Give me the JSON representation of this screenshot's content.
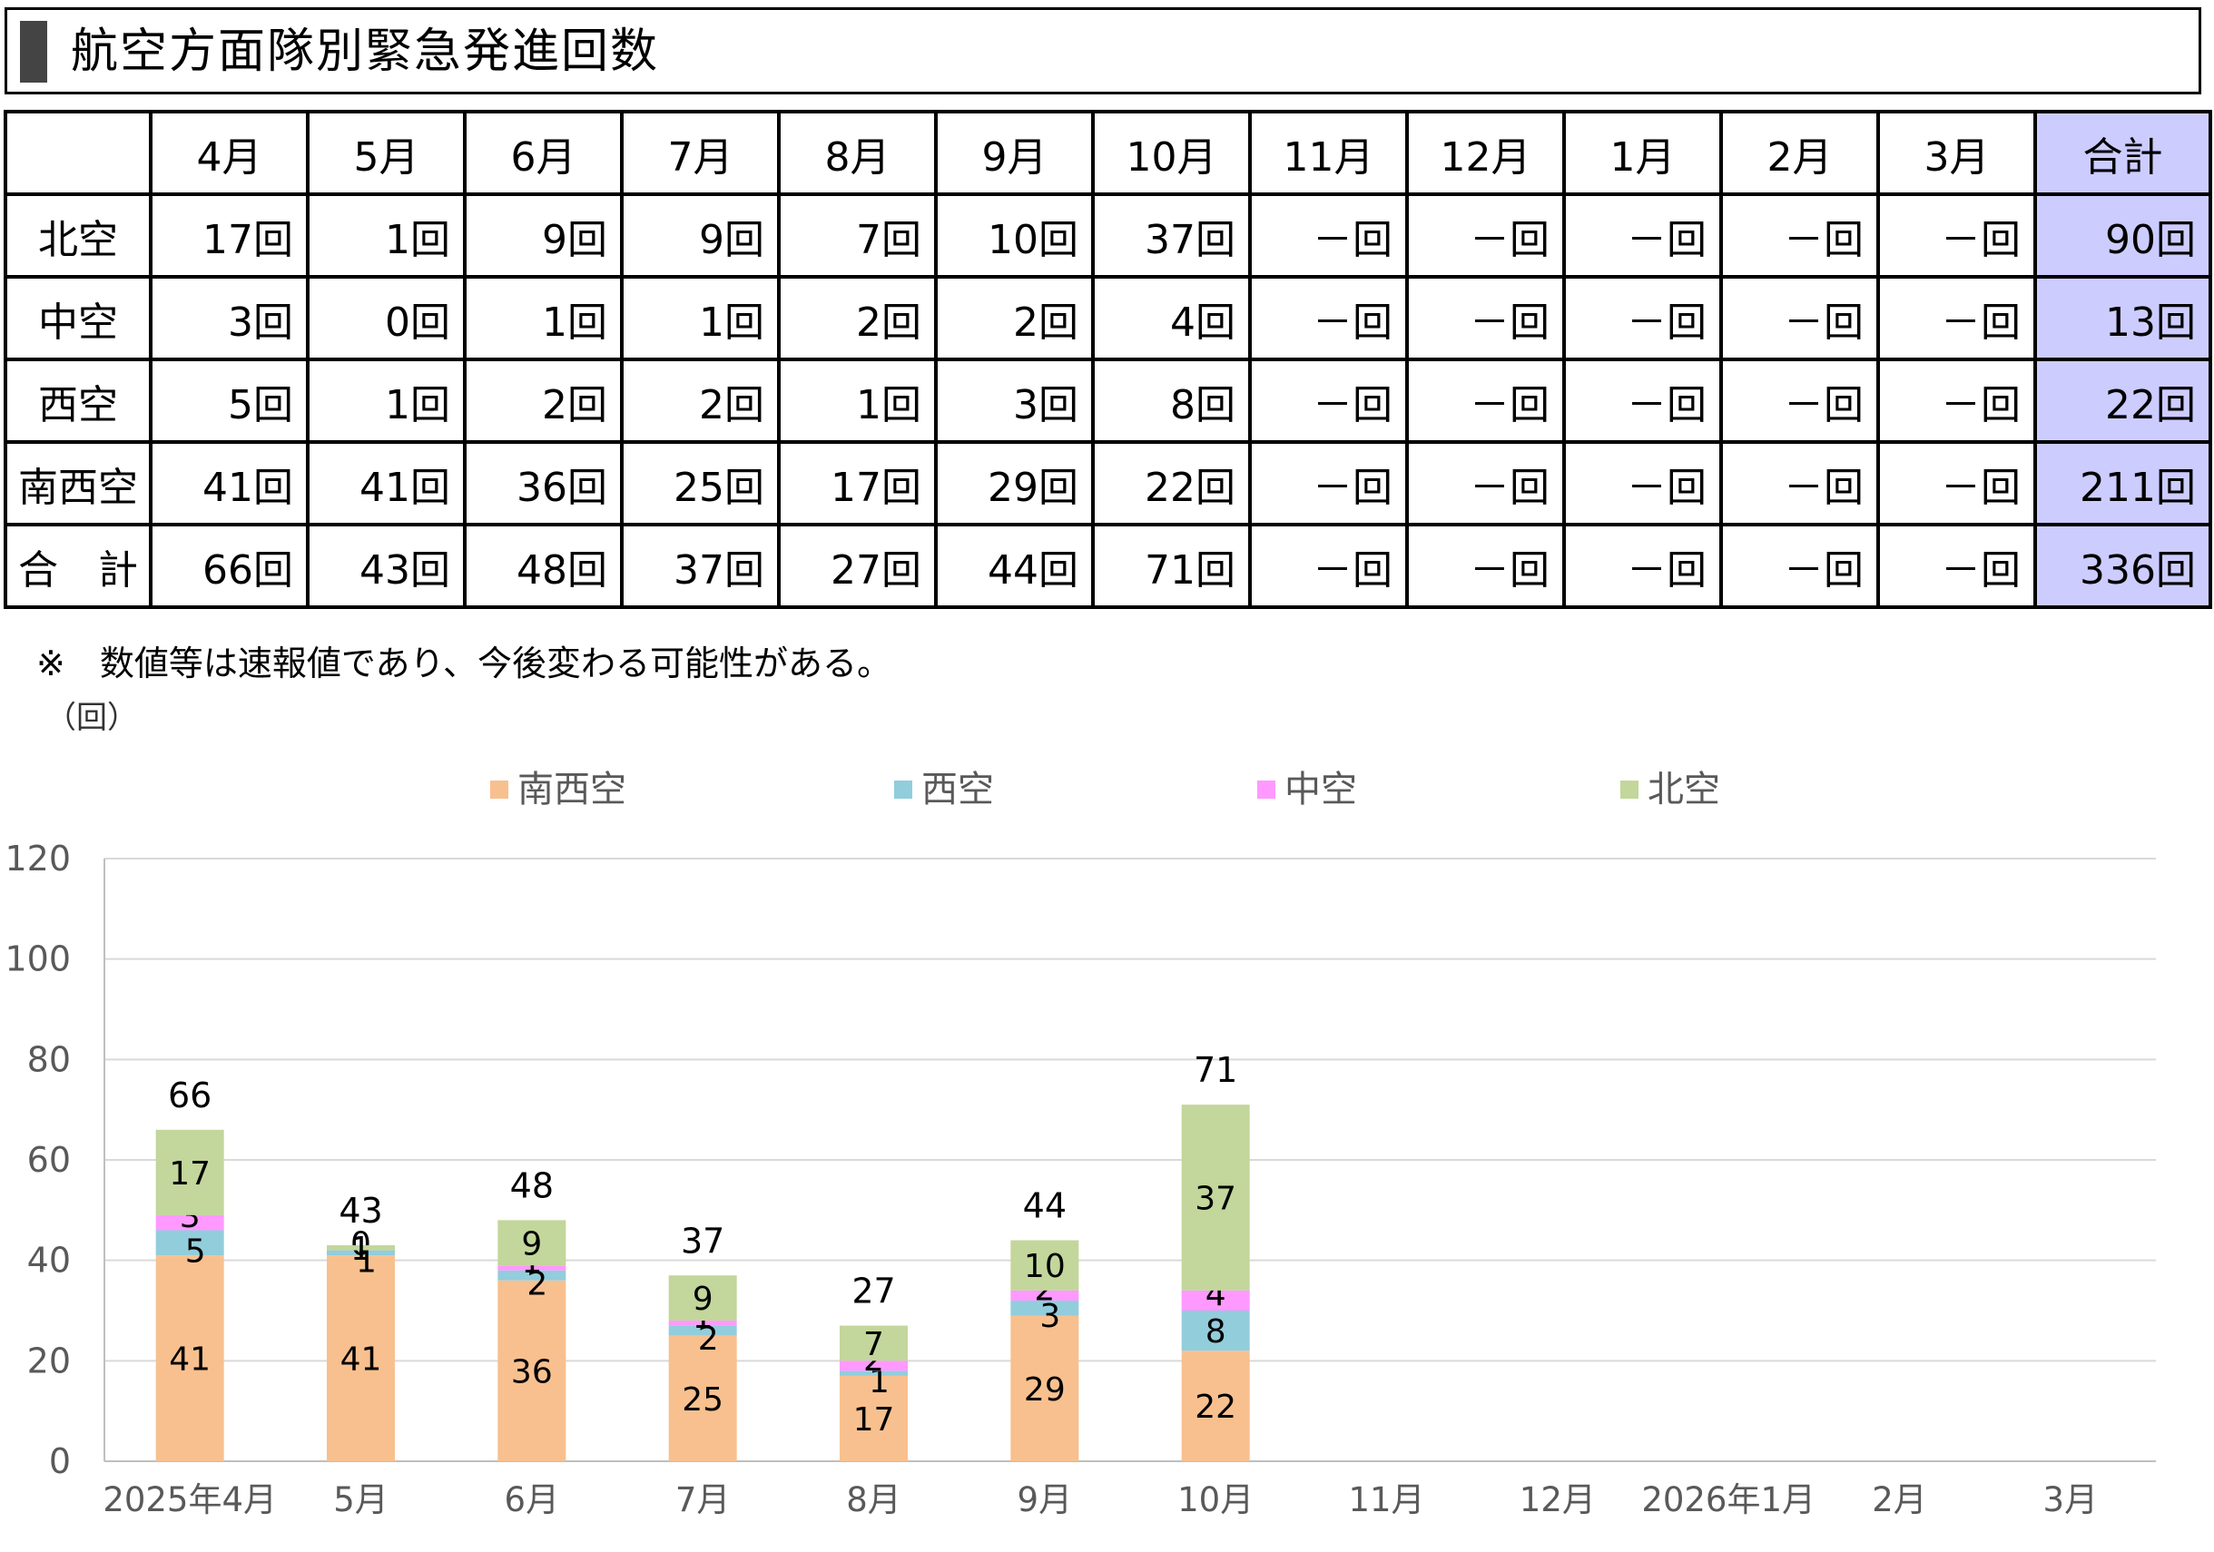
{
  "title": "航空方面隊別緊急発進回数",
  "table": {
    "headers": [
      "",
      "4月",
      "5月",
      "6月",
      "7月",
      "8月",
      "9月",
      "10月",
      "11月",
      "12月",
      "1月",
      "2月",
      "3月",
      "合計"
    ],
    "rows": [
      {
        "label": "北空",
        "cells": [
          "17回",
          "1回",
          "9回",
          "9回",
          "7回",
          "10回",
          "37回",
          "－回",
          "－回",
          "－回",
          "－回",
          "－回",
          "90回"
        ]
      },
      {
        "label": "中空",
        "cells": [
          "3回",
          "0回",
          "1回",
          "1回",
          "2回",
          "2回",
          "4回",
          "－回",
          "－回",
          "－回",
          "－回",
          "－回",
          "13回"
        ]
      },
      {
        "label": "西空",
        "cells": [
          "5回",
          "1回",
          "2回",
          "2回",
          "1回",
          "3回",
          "8回",
          "－回",
          "－回",
          "－回",
          "－回",
          "－回",
          "22回"
        ]
      },
      {
        "label": "南西空",
        "cells": [
          "41回",
          "41回",
          "36回",
          "25回",
          "17回",
          "29回",
          "22回",
          "－回",
          "－回",
          "－回",
          "－回",
          "－回",
          "211回"
        ]
      },
      {
        "label": "合　計",
        "cells": [
          "66回",
          "43回",
          "48回",
          "37回",
          "27回",
          "44回",
          "71回",
          "－回",
          "－回",
          "－回",
          "－回",
          "－回",
          "336回"
        ]
      }
    ],
    "sum_color": "#ccccff"
  },
  "note": "※　数値等は速報値であり、今後変わる可能性がある。",
  "unit": "（回）",
  "chart_data": {
    "type": "bar",
    "stacked": true,
    "categories": [
      "2025年4月",
      "5月",
      "6月",
      "7月",
      "8月",
      "9月",
      "10月",
      "11月",
      "12月",
      "2026年1月",
      "2月",
      "3月"
    ],
    "series": [
      {
        "name": "南西空",
        "color": "#f8c08f",
        "values": [
          41,
          41,
          36,
          25,
          17,
          29,
          22,
          null,
          null,
          null,
          null,
          null
        ]
      },
      {
        "name": "西空",
        "color": "#92cddc",
        "values": [
          5,
          1,
          2,
          2,
          1,
          3,
          8,
          null,
          null,
          null,
          null,
          null
        ]
      },
      {
        "name": "中空",
        "color": "#ff99ff",
        "values": [
          3,
          0,
          1,
          1,
          2,
          2,
          4,
          null,
          null,
          null,
          null,
          null
        ]
      },
      {
        "name": "北空",
        "color": "#c3d69b",
        "values": [
          17,
          1,
          9,
          9,
          7,
          10,
          37,
          null,
          null,
          null,
          null,
          null
        ]
      }
    ],
    "totals": [
      66,
      43,
      48,
      37,
      27,
      44,
      71,
      null,
      null,
      null,
      null,
      null
    ],
    "ylim": [
      0,
      120
    ],
    "yticks": [
      0,
      20,
      40,
      60,
      80,
      100,
      120
    ],
    "grid": true,
    "legend": "top"
  }
}
